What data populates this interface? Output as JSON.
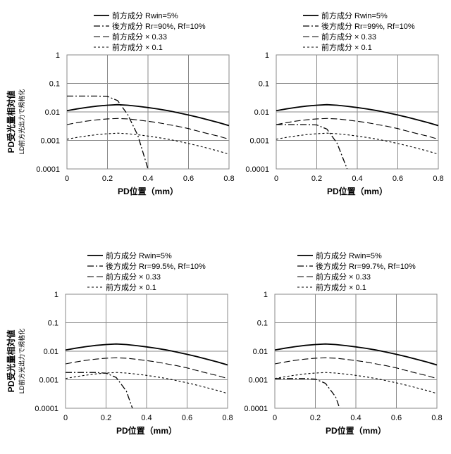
{
  "chart_data": [
    {
      "type": "line",
      "ylabel": "PD受光量相対値",
      "ylabel_sub": "LD前方光出力で規格化",
      "xlabel": "PD位置（mm）",
      "xlim": [
        0,
        0.8
      ],
      "ylim": [
        0.0001,
        1
      ],
      "y_scale": "log",
      "grid": true,
      "legend_position": "top",
      "x_ticks": [
        "0",
        "0.2",
        "0.4",
        "0.6",
        "0.8"
      ],
      "y_ticks": [
        "0.0001",
        "0.001",
        "0.01",
        "0.1",
        "1"
      ],
      "series": [
        {
          "name": "前方成分 Rwin=5%",
          "x": [
            0,
            0.05,
            0.1,
            0.15,
            0.2,
            0.25,
            0.3,
            0.35,
            0.4,
            0.45,
            0.5,
            0.55,
            0.6,
            0.65,
            0.7,
            0.75,
            0.8
          ],
          "y": [
            0.011,
            0.0128,
            0.0145,
            0.016,
            0.0172,
            0.018,
            0.0172,
            0.0158,
            0.0142,
            0.0126,
            0.011,
            0.0093,
            0.0078,
            0.0064,
            0.0052,
            0.0042,
            0.0033
          ]
        },
        {
          "name": "後方成分 Rr=90%, Rf=10%",
          "x": [
            0,
            0.05,
            0.1,
            0.15,
            0.2,
            0.25,
            0.3,
            0.35,
            0.4
          ],
          "y": [
            0.036,
            0.036,
            0.036,
            0.036,
            0.035,
            0.025,
            0.008,
            0.0015,
            0.0001
          ]
        },
        {
          "name": "前方成分 × 0.33",
          "x": [
            0,
            0.05,
            0.1,
            0.15,
            0.2,
            0.25,
            0.3,
            0.35,
            0.4,
            0.45,
            0.5,
            0.55,
            0.6,
            0.65,
            0.7,
            0.75,
            0.8
          ],
          "y": [
            0.0036,
            0.0042,
            0.0048,
            0.0053,
            0.0057,
            0.0059,
            0.0057,
            0.0052,
            0.0047,
            0.0042,
            0.0036,
            0.0031,
            0.0026,
            0.0021,
            0.0017,
            0.0014,
            0.0011
          ]
        },
        {
          "name": "前方成分 × 0.1",
          "x": [
            0,
            0.05,
            0.1,
            0.15,
            0.2,
            0.25,
            0.3,
            0.35,
            0.4,
            0.45,
            0.5,
            0.55,
            0.6,
            0.65,
            0.7,
            0.75,
            0.8
          ],
          "y": [
            0.0011,
            0.00128,
            0.00145,
            0.0016,
            0.00172,
            0.0018,
            0.00172,
            0.00158,
            0.00142,
            0.00126,
            0.0011,
            0.00093,
            0.00078,
            0.00064,
            0.00052,
            0.00042,
            0.00033
          ]
        }
      ]
    },
    {
      "type": "line",
      "ylabel": "",
      "ylabel_sub": "",
      "xlabel": "PD位置（mm）",
      "xlim": [
        0,
        0.8
      ],
      "ylim": [
        0.0001,
        1
      ],
      "y_scale": "log",
      "grid": true,
      "legend_position": "top",
      "x_ticks": [
        "0",
        "0.2",
        "0.4",
        "0.6",
        "0.8"
      ],
      "y_ticks": [
        "0.0001",
        "0.001",
        "0.01",
        "0.1",
        "1"
      ],
      "series": [
        {
          "name": "前方成分 Rwin=5%",
          "x": [
            0,
            0.05,
            0.1,
            0.15,
            0.2,
            0.25,
            0.3,
            0.35,
            0.4,
            0.45,
            0.5,
            0.55,
            0.6,
            0.65,
            0.7,
            0.75,
            0.8
          ],
          "y": [
            0.011,
            0.0128,
            0.0145,
            0.016,
            0.0172,
            0.018,
            0.0172,
            0.0158,
            0.0142,
            0.0126,
            0.011,
            0.0093,
            0.0078,
            0.0064,
            0.0052,
            0.0042,
            0.0033
          ]
        },
        {
          "name": "後方成分 Rr=99%, Rf=10%",
          "x": [
            0,
            0.05,
            0.1,
            0.15,
            0.2,
            0.25,
            0.3,
            0.35
          ],
          "y": [
            0.0036,
            0.0036,
            0.0036,
            0.0036,
            0.0035,
            0.0025,
            0.0008,
            0.0001
          ]
        },
        {
          "name": "前方成分 × 0.33",
          "x": [
            0,
            0.05,
            0.1,
            0.15,
            0.2,
            0.25,
            0.3,
            0.35,
            0.4,
            0.45,
            0.5,
            0.55,
            0.6,
            0.65,
            0.7,
            0.75,
            0.8
          ],
          "y": [
            0.0036,
            0.0042,
            0.0048,
            0.0053,
            0.0057,
            0.0059,
            0.0057,
            0.0052,
            0.0047,
            0.0042,
            0.0036,
            0.0031,
            0.0026,
            0.0021,
            0.0017,
            0.0014,
            0.0011
          ]
        },
        {
          "name": "前方成分 × 0.1",
          "x": [
            0,
            0.05,
            0.1,
            0.15,
            0.2,
            0.25,
            0.3,
            0.35,
            0.4,
            0.45,
            0.5,
            0.55,
            0.6,
            0.65,
            0.7,
            0.75,
            0.8
          ],
          "y": [
            0.0011,
            0.00128,
            0.00145,
            0.0016,
            0.00172,
            0.0018,
            0.00172,
            0.00158,
            0.00142,
            0.00126,
            0.0011,
            0.00093,
            0.00078,
            0.00064,
            0.00052,
            0.00042,
            0.00033
          ]
        }
      ]
    },
    {
      "type": "line",
      "ylabel": "PD受光量相対値",
      "ylabel_sub": "LD前方光出力で規格化",
      "xlabel": "PD位置（mm）",
      "xlim": [
        0,
        0.8
      ],
      "ylim": [
        0.0001,
        1
      ],
      "y_scale": "log",
      "grid": true,
      "legend_position": "top",
      "x_ticks": [
        "0",
        "0.2",
        "0.4",
        "0.6",
        "0.8"
      ],
      "y_ticks": [
        "0.0001",
        "0.001",
        "0.01",
        "0.1",
        "1"
      ],
      "series": [
        {
          "name": "前方成分 Rwin=5%",
          "x": [
            0,
            0.05,
            0.1,
            0.15,
            0.2,
            0.25,
            0.3,
            0.35,
            0.4,
            0.45,
            0.5,
            0.55,
            0.6,
            0.65,
            0.7,
            0.75,
            0.8
          ],
          "y": [
            0.011,
            0.0128,
            0.0145,
            0.016,
            0.0172,
            0.018,
            0.0172,
            0.0158,
            0.0142,
            0.0126,
            0.011,
            0.0093,
            0.0078,
            0.0064,
            0.0052,
            0.0042,
            0.0033
          ]
        },
        {
          "name": "後方成分 Rr=99.5%, Rf=10%",
          "x": [
            0,
            0.05,
            0.1,
            0.15,
            0.2,
            0.25,
            0.3,
            0.33
          ],
          "y": [
            0.0018,
            0.0018,
            0.0018,
            0.0018,
            0.0017,
            0.0012,
            0.0004,
            0.0001
          ]
        },
        {
          "name": "前方成分 × 0.33",
          "x": [
            0,
            0.05,
            0.1,
            0.15,
            0.2,
            0.25,
            0.3,
            0.35,
            0.4,
            0.45,
            0.5,
            0.55,
            0.6,
            0.65,
            0.7,
            0.75,
            0.8
          ],
          "y": [
            0.0036,
            0.0042,
            0.0048,
            0.0053,
            0.0057,
            0.0059,
            0.0057,
            0.0052,
            0.0047,
            0.0042,
            0.0036,
            0.0031,
            0.0026,
            0.0021,
            0.0017,
            0.0014,
            0.0011
          ]
        },
        {
          "name": "前方成分 × 0.1",
          "x": [
            0,
            0.05,
            0.1,
            0.15,
            0.2,
            0.25,
            0.3,
            0.35,
            0.4,
            0.45,
            0.5,
            0.55,
            0.6,
            0.65,
            0.7,
            0.75,
            0.8
          ],
          "y": [
            0.0011,
            0.00128,
            0.00145,
            0.0016,
            0.00172,
            0.0018,
            0.00172,
            0.00158,
            0.00142,
            0.00126,
            0.0011,
            0.00093,
            0.00078,
            0.00064,
            0.00052,
            0.00042,
            0.00033
          ]
        }
      ]
    },
    {
      "type": "line",
      "ylabel": "",
      "ylabel_sub": "",
      "xlabel": "PD位置（mm）",
      "xlim": [
        0,
        0.8
      ],
      "ylim": [
        0.0001,
        1
      ],
      "y_scale": "log",
      "grid": true,
      "legend_position": "top",
      "x_ticks": [
        "0",
        "0.2",
        "0.4",
        "0.6",
        "0.8"
      ],
      "y_ticks": [
        "0.0001",
        "0.001",
        "0.01",
        "0.1",
        "1"
      ],
      "series": [
        {
          "name": "前方成分 Rwin=5%",
          "x": [
            0,
            0.05,
            0.1,
            0.15,
            0.2,
            0.25,
            0.3,
            0.35,
            0.4,
            0.45,
            0.5,
            0.55,
            0.6,
            0.65,
            0.7,
            0.75,
            0.8
          ],
          "y": [
            0.011,
            0.0128,
            0.0145,
            0.016,
            0.0172,
            0.018,
            0.0172,
            0.0158,
            0.0142,
            0.0126,
            0.011,
            0.0093,
            0.0078,
            0.0064,
            0.0052,
            0.0042,
            0.0033
          ]
        },
        {
          "name": "後方成分 Rr=99.7%, Rf=10%",
          "x": [
            0,
            0.05,
            0.1,
            0.15,
            0.2,
            0.25,
            0.3,
            0.32
          ],
          "y": [
            0.0011,
            0.0011,
            0.0011,
            0.0011,
            0.00105,
            0.00075,
            0.00025,
            0.0001
          ]
        },
        {
          "name": "前方成分 × 0.33",
          "x": [
            0,
            0.05,
            0.1,
            0.15,
            0.2,
            0.25,
            0.3,
            0.35,
            0.4,
            0.45,
            0.5,
            0.55,
            0.6,
            0.65,
            0.7,
            0.75,
            0.8
          ],
          "y": [
            0.0036,
            0.0042,
            0.0048,
            0.0053,
            0.0057,
            0.0059,
            0.0057,
            0.0052,
            0.0047,
            0.0042,
            0.0036,
            0.0031,
            0.0026,
            0.0021,
            0.0017,
            0.0014,
            0.0011
          ]
        },
        {
          "name": "前方成分 × 0.1",
          "x": [
            0,
            0.05,
            0.1,
            0.15,
            0.2,
            0.25,
            0.3,
            0.35,
            0.4,
            0.45,
            0.5,
            0.55,
            0.6,
            0.65,
            0.7,
            0.75,
            0.8
          ],
          "y": [
            0.0011,
            0.00128,
            0.00145,
            0.0016,
            0.00172,
            0.0018,
            0.00172,
            0.00158,
            0.00142,
            0.00126,
            0.0011,
            0.00093,
            0.00078,
            0.00064,
            0.00052,
            0.00042,
            0.00033
          ]
        }
      ]
    }
  ]
}
